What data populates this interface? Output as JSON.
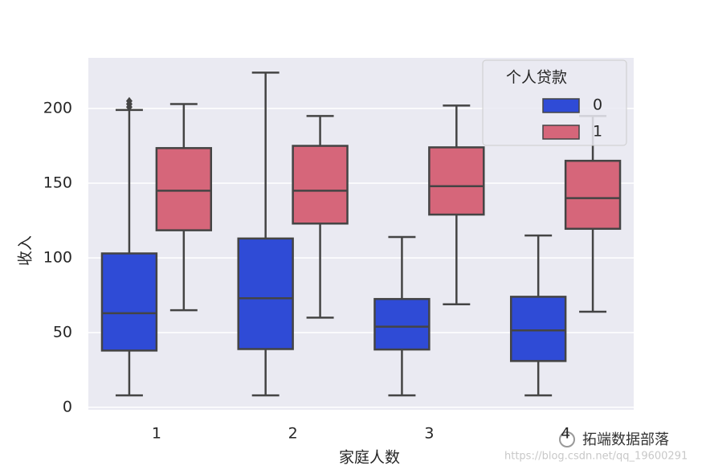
{
  "chart_data": {
    "type": "box",
    "xlabel": "家庭人数",
    "ylabel": "收入",
    "categories": [
      "1",
      "2",
      "3",
      "4"
    ],
    "ylim": [
      -1.6,
      233.9
    ],
    "yticks": [
      0,
      50,
      100,
      150,
      200
    ],
    "grid": true,
    "legend_title": "个人贷款",
    "legend_position": "upper right",
    "series": [
      {
        "name": "0",
        "color": "#2f4bd6",
        "boxes": [
          {
            "low": 8,
            "q1": 38,
            "median": 63,
            "q3": 103,
            "high": 199,
            "outliers": [
              201,
              203,
              205
            ]
          },
          {
            "low": 8,
            "q1": 39,
            "median": 73,
            "q3": 113,
            "high": 224,
            "outliers": []
          },
          {
            "low": 8,
            "q1": 38.7,
            "median": 54,
            "q3": 72.5,
            "high": 114,
            "outliers": []
          },
          {
            "low": 8,
            "q1": 31,
            "median": 51.5,
            "q3": 74,
            "high": 115,
            "outliers": []
          }
        ]
      },
      {
        "name": "1",
        "color": "#d6667a",
        "boxes": [
          {
            "low": 65,
            "q1": 118.5,
            "median": 145,
            "q3": 173.5,
            "high": 203,
            "outliers": []
          },
          {
            "low": 60,
            "q1": 123,
            "median": 145,
            "q3": 175,
            "high": 195,
            "outliers": []
          },
          {
            "low": 69,
            "q1": 129,
            "median": 148,
            "q3": 174,
            "high": 202,
            "outliers": []
          },
          {
            "low": 64,
            "q1": 119.5,
            "median": 140,
            "q3": 165,
            "high": 195,
            "outliers": []
          }
        ]
      }
    ]
  },
  "watermark": {
    "brand": "拓端数据部落",
    "url": "https://blog.csdn.net/qq_19600291"
  }
}
